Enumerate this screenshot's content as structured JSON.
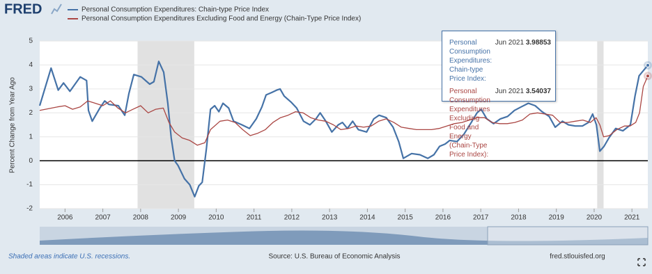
{
  "chart_data": {
    "type": "line",
    "logo": "FRED",
    "y_label": "Percent Change from Year Ago",
    "note": "Shaded areas indicate U.S. recessions.",
    "source": "Source: U.S. Bureau of Economic Analysis",
    "site": "fred.stlouisfed.org",
    "xlim": [
      2005.33,
      2021.42
    ],
    "xticks": [
      2006,
      2007,
      2008,
      2009,
      2010,
      2011,
      2012,
      2013,
      2014,
      2015,
      2016,
      2017,
      2018,
      2019,
      2020,
      2021
    ],
    "ylim": [
      -2,
      5
    ],
    "yticks": [
      -2,
      -1,
      0,
      1,
      2,
      3,
      4,
      5
    ],
    "grid": true,
    "recessions": [
      [
        2007.92,
        2009.42
      ],
      [
        2020.08,
        2020.25
      ]
    ],
    "recession_color": "#e1e1e1",
    "series": [
      {
        "name": "Personal Consumption Expenditures: Chain-type Price Index",
        "color": "#4572a7",
        "x": [
          2005.33,
          2005.63,
          2005.82,
          2005.96,
          2006.13,
          2006.4,
          2006.57,
          2006.62,
          2006.72,
          2006.92,
          2007.05,
          2007.16,
          2007.41,
          2007.58,
          2007.69,
          2007.82,
          2008.02,
          2008.24,
          2008.35,
          2008.48,
          2008.61,
          2008.72,
          2008.81,
          2008.9,
          2008.99,
          2009.16,
          2009.3,
          2009.43,
          2009.54,
          2009.63,
          2009.74,
          2009.85,
          2009.96,
          2010.07,
          2010.18,
          2010.33,
          2010.46,
          2010.68,
          2010.88,
          2011.06,
          2011.21,
          2011.32,
          2011.47,
          2011.6,
          2011.69,
          2011.8,
          2011.98,
          2012.13,
          2012.31,
          2012.48,
          2012.64,
          2012.75,
          2012.9,
          2013.06,
          2013.23,
          2013.34,
          2013.47,
          2013.61,
          2013.76,
          2013.98,
          2014.17,
          2014.31,
          2014.5,
          2014.68,
          2014.83,
          2014.95,
          2015.17,
          2015.39,
          2015.6,
          2015.76,
          2015.91,
          2016.06,
          2016.18,
          2016.37,
          2016.55,
          2016.73,
          2016.9,
          2017.01,
          2017.16,
          2017.34,
          2017.52,
          2017.71,
          2017.89,
          2018.07,
          2018.26,
          2018.44,
          2018.62,
          2018.81,
          2018.97,
          2019.16,
          2019.32,
          2019.5,
          2019.69,
          2019.85,
          2019.96,
          2020.06,
          2020.15,
          2020.26,
          2020.39,
          2020.57,
          2020.76,
          2020.96,
          2021.08,
          2021.19,
          2021.42
        ],
        "values": [
          2.3,
          3.87,
          2.95,
          3.25,
          2.9,
          3.5,
          3.35,
          2.1,
          1.65,
          2.2,
          2.5,
          2.35,
          2.3,
          1.9,
          2.8,
          3.6,
          3.5,
          3.2,
          3.3,
          4.15,
          3.7,
          2.4,
          0.95,
          0,
          -0.2,
          -0.75,
          -1.0,
          -1.5,
          -1.05,
          -0.9,
          0.5,
          2.15,
          2.3,
          2.05,
          2.4,
          2.2,
          1.65,
          1.5,
          1.35,
          1.75,
          2.25,
          2.75,
          2.85,
          2.95,
          3.0,
          2.7,
          2.45,
          2.2,
          1.65,
          1.5,
          1.75,
          2.0,
          1.65,
          1.2,
          1.5,
          1.6,
          1.35,
          1.65,
          1.3,
          1.2,
          1.75,
          1.9,
          1.8,
          1.4,
          0.8,
          0.1,
          0.3,
          0.25,
          0.1,
          0.25,
          0.6,
          0.7,
          0.85,
          0.8,
          1.1,
          1.55,
          2.0,
          2.15,
          1.75,
          1.55,
          1.75,
          1.85,
          2.1,
          2.25,
          2.4,
          2.3,
          2.05,
          1.85,
          1.4,
          1.65,
          1.5,
          1.45,
          1.45,
          1.6,
          1.95,
          1.5,
          0.4,
          0.6,
          0.95,
          1.35,
          1.25,
          1.5,
          2.7,
          3.55,
          3.98853
        ]
      },
      {
        "name": "Personal Consumption Expenditures Excluding Food and Energy (Chain-Type Price Index)",
        "color": "#aa4643",
        "x": [
          2005.33,
          2005.8,
          2006.0,
          2006.2,
          2006.4,
          2006.6,
          2006.8,
          2007.0,
          2007.2,
          2007.4,
          2007.6,
          2007.8,
          2008.0,
          2008.2,
          2008.4,
          2008.6,
          2008.75,
          2008.9,
          2009.1,
          2009.3,
          2009.5,
          2009.7,
          2009.85,
          2010.1,
          2010.3,
          2010.5,
          2010.7,
          2010.9,
          2011.1,
          2011.3,
          2011.5,
          2011.7,
          2011.9,
          2012.1,
          2012.3,
          2012.5,
          2012.7,
          2012.9,
          2013.1,
          2013.3,
          2013.5,
          2013.7,
          2013.9,
          2014.1,
          2014.3,
          2014.5,
          2014.7,
          2014.9,
          2015.1,
          2015.3,
          2015.5,
          2015.7,
          2015.9,
          2016.1,
          2016.3,
          2016.5,
          2016.7,
          2016.9,
          2017.1,
          2017.3,
          2017.5,
          2017.7,
          2017.9,
          2018.1,
          2018.3,
          2018.5,
          2018.7,
          2018.9,
          2019.1,
          2019.3,
          2019.5,
          2019.7,
          2019.9,
          2020.05,
          2020.15,
          2020.25,
          2020.4,
          2020.6,
          2020.8,
          2020.95,
          2021.1,
          2021.2,
          2021.3,
          2021.42
        ],
        "values": [
          2.1,
          2.25,
          2.3,
          2.15,
          2.25,
          2.5,
          2.4,
          2.3,
          2.5,
          2.2,
          2.0,
          2.15,
          2.3,
          2.0,
          2.15,
          2.2,
          1.6,
          1.2,
          0.95,
          0.85,
          0.65,
          0.75,
          1.3,
          1.65,
          1.7,
          1.6,
          1.3,
          1.05,
          1.15,
          1.3,
          1.6,
          1.8,
          1.9,
          2.05,
          2.0,
          1.8,
          1.7,
          1.65,
          1.5,
          1.3,
          1.35,
          1.45,
          1.4,
          1.45,
          1.65,
          1.75,
          1.6,
          1.4,
          1.35,
          1.3,
          1.3,
          1.3,
          1.35,
          1.45,
          1.55,
          1.6,
          1.7,
          1.8,
          1.8,
          1.6,
          1.55,
          1.55,
          1.6,
          1.7,
          1.95,
          2.0,
          1.95,
          1.9,
          1.6,
          1.6,
          1.65,
          1.7,
          1.6,
          1.8,
          1.5,
          1.0,
          1.05,
          1.3,
          1.45,
          1.45,
          1.6,
          2.0,
          3.1,
          3.54037
        ]
      }
    ],
    "tooltip": {
      "date": "Jun 2021",
      "labels": [
        "Personal Consumption Expenditures: Chain-type Price Index:",
        "Personal Consumption Expenditures Excluding Food and Energy (Chain-Type Price Index):"
      ]
    }
  }
}
